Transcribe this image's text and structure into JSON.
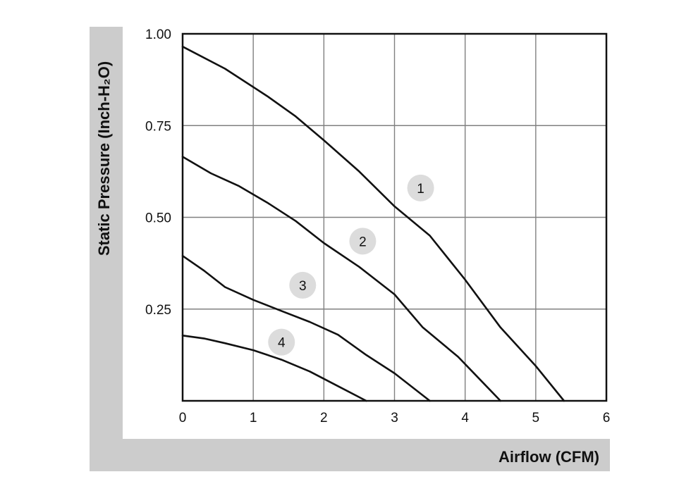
{
  "chart_data": {
    "type": "line",
    "xlabel": "Airflow (CFM)",
    "ylabel": "Static Pressure (Inch-H₂O)",
    "xlim": [
      0,
      6
    ],
    "ylim": [
      0,
      1.0
    ],
    "x_ticks": [
      "0",
      "1",
      "2",
      "3",
      "4",
      "5",
      "6"
    ],
    "y_ticks": [
      "0.25",
      "0.50",
      "0.75",
      "1.00"
    ],
    "grid": true,
    "series": [
      {
        "name": "1",
        "points": [
          [
            0,
            0.965
          ],
          [
            0.6,
            0.905
          ],
          [
            1.2,
            0.83
          ],
          [
            1.6,
            0.775
          ],
          [
            2.0,
            0.71
          ],
          [
            2.5,
            0.625
          ],
          [
            3.0,
            0.53
          ],
          [
            3.5,
            0.45
          ],
          [
            4.0,
            0.33
          ],
          [
            4.5,
            0.2
          ],
          [
            5.0,
            0.095
          ],
          [
            5.4,
            0.0
          ]
        ],
        "label_at": [
          3.37,
          0.58
        ]
      },
      {
        "name": "2",
        "points": [
          [
            0,
            0.665
          ],
          [
            0.4,
            0.62
          ],
          [
            0.8,
            0.585
          ],
          [
            1.2,
            0.54
          ],
          [
            1.6,
            0.49
          ],
          [
            2.0,
            0.43
          ],
          [
            2.5,
            0.365
          ],
          [
            3.0,
            0.29
          ],
          [
            3.4,
            0.2
          ],
          [
            3.9,
            0.12
          ],
          [
            4.2,
            0.06
          ],
          [
            4.5,
            0.0
          ]
        ],
        "label_at": [
          2.55,
          0.435
        ]
      },
      {
        "name": "3",
        "points": [
          [
            0,
            0.395
          ],
          [
            0.3,
            0.355
          ],
          [
            0.6,
            0.31
          ],
          [
            1.0,
            0.275
          ],
          [
            1.4,
            0.245
          ],
          [
            1.8,
            0.215
          ],
          [
            2.2,
            0.18
          ],
          [
            2.6,
            0.125
          ],
          [
            3.0,
            0.075
          ],
          [
            3.5,
            0.0
          ]
        ],
        "label_at": [
          1.7,
          0.315
        ]
      },
      {
        "name": "4",
        "points": [
          [
            0,
            0.178
          ],
          [
            0.3,
            0.17
          ],
          [
            0.6,
            0.157
          ],
          [
            1.0,
            0.138
          ],
          [
            1.4,
            0.112
          ],
          [
            1.8,
            0.08
          ],
          [
            2.2,
            0.04
          ],
          [
            2.6,
            0.0
          ]
        ],
        "label_at": [
          1.4,
          0.16
        ]
      }
    ]
  }
}
